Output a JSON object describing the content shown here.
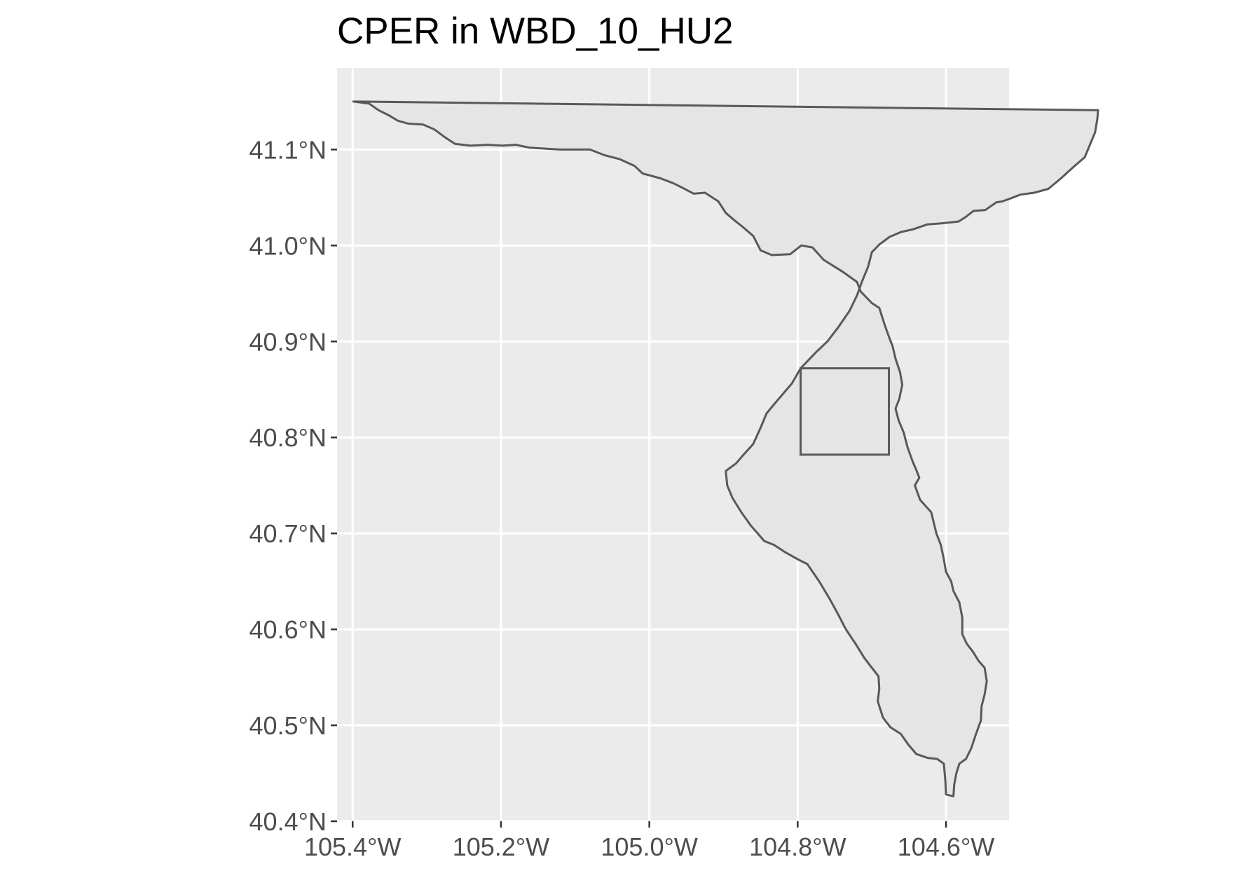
{
  "title": "CPER in WBD_10_HU2",
  "colors": {
    "panel_background": "#ebebeb",
    "grid": "#ffffff",
    "watershed_fill": "#e5e5e5",
    "outline": "#595959",
    "axis_text": "#4d4d4d",
    "tick": "#333333"
  },
  "chart_data": {
    "type": "map",
    "title": "CPER in WBD_10_HU2",
    "xlabel": "",
    "ylabel": "",
    "xlim": [
      -105.421,
      -104.515
    ],
    "ylim": [
      40.4,
      41.185
    ],
    "grid": true,
    "x_ticks": [
      {
        "value": -105.4,
        "label": "105.4°W"
      },
      {
        "value": -105.2,
        "label": "105.2°W"
      },
      {
        "value": -105.0,
        "label": "105.0°W"
      },
      {
        "value": -104.8,
        "label": "104.8°W"
      },
      {
        "value": -104.6,
        "label": "104.6°W"
      }
    ],
    "y_ticks": [
      {
        "value": 41.1,
        "label": "41.1°N"
      },
      {
        "value": 41.0,
        "label": "41.0°N"
      },
      {
        "value": 40.9,
        "label": "40.9°N"
      },
      {
        "value": 40.8,
        "label": "40.8°N"
      },
      {
        "value": 40.7,
        "label": "40.7°N"
      },
      {
        "value": 40.6,
        "label": "40.6°N"
      },
      {
        "value": 40.5,
        "label": "40.5°N"
      },
      {
        "value": 40.4,
        "label": "40.4°N"
      }
    ],
    "watershed_polygon": [
      [
        -105.399,
        41.15
      ],
      [
        -105.378,
        41.148
      ],
      [
        -105.365,
        41.141
      ],
      [
        -105.352,
        41.136
      ],
      [
        -105.339,
        41.13
      ],
      [
        -105.325,
        41.127
      ],
      [
        -105.305,
        41.126
      ],
      [
        -105.29,
        41.121
      ],
      [
        -105.276,
        41.113
      ],
      [
        -105.262,
        41.106
      ],
      [
        -105.241,
        41.104
      ],
      [
        -105.218,
        41.105
      ],
      [
        -105.198,
        41.104
      ],
      [
        -105.18,
        41.105
      ],
      [
        -105.162,
        41.102
      ],
      [
        -105.142,
        41.101
      ],
      [
        -105.121,
        41.1
      ],
      [
        -105.1,
        41.1
      ],
      [
        -105.08,
        41.1
      ],
      [
        -105.06,
        41.094
      ],
      [
        -105.04,
        41.09
      ],
      [
        -105.02,
        41.083
      ],
      [
        -105.009,
        41.075
      ],
      [
        -104.985,
        41.07
      ],
      [
        -104.968,
        41.065
      ],
      [
        -104.955,
        41.06
      ],
      [
        -104.94,
        41.054
      ],
      [
        -104.925,
        41.055
      ],
      [
        -104.907,
        41.046
      ],
      [
        -104.897,
        41.034
      ],
      [
        -104.885,
        41.026
      ],
      [
        -104.875,
        41.02
      ],
      [
        -104.86,
        41.01
      ],
      [
        -104.85,
        40.995
      ],
      [
        -104.835,
        40.99
      ],
      [
        -104.81,
        40.991
      ],
      [
        -104.795,
        41.0
      ],
      [
        -104.78,
        40.998
      ],
      [
        -104.765,
        40.985
      ],
      [
        -104.74,
        40.973
      ],
      [
        -104.72,
        40.962
      ],
      [
        -104.715,
        40.952
      ],
      [
        -104.7,
        40.94
      ],
      [
        -104.69,
        40.935
      ],
      [
        -104.683,
        40.918
      ],
      [
        -104.677,
        40.905
      ],
      [
        -104.672,
        40.895
      ],
      [
        -104.668,
        40.882
      ],
      [
        -104.662,
        40.868
      ],
      [
        -104.659,
        40.855
      ],
      [
        -104.663,
        40.84
      ],
      [
        -104.668,
        40.83
      ],
      [
        -104.664,
        40.818
      ],
      [
        -104.657,
        40.805
      ],
      [
        -104.652,
        40.79
      ],
      [
        -104.645,
        40.775
      ],
      [
        -104.64,
        40.766
      ],
      [
        -104.636,
        40.758
      ],
      [
        -104.642,
        40.75
      ],
      [
        -104.635,
        40.735
      ],
      [
        -104.62,
        40.722
      ],
      [
        -104.613,
        40.7
      ],
      [
        -104.607,
        40.688
      ],
      [
        -104.603,
        40.673
      ],
      [
        -104.6,
        40.66
      ],
      [
        -104.593,
        40.65
      ],
      [
        -104.59,
        40.64
      ],
      [
        -104.582,
        40.628
      ],
      [
        -104.578,
        40.612
      ],
      [
        -104.578,
        40.595
      ],
      [
        -104.572,
        40.585
      ],
      [
        -104.564,
        40.577
      ],
      [
        -104.556,
        40.567
      ],
      [
        -104.548,
        40.56
      ],
      [
        -104.545,
        40.546
      ],
      [
        -104.548,
        40.532
      ],
      [
        -104.552,
        40.52
      ],
      [
        -104.553,
        40.505
      ],
      [
        -104.56,
        40.49
      ],
      [
        -104.566,
        40.476
      ],
      [
        -104.573,
        40.465
      ],
      [
        -104.582,
        40.46
      ],
      [
        -104.586,
        40.45
      ],
      [
        -104.589,
        40.438
      ],
      [
        -104.59,
        40.426
      ],
      [
        -104.6,
        40.428
      ],
      [
        -104.601,
        40.443
      ],
      [
        -104.603,
        40.46
      ],
      [
        -104.612,
        40.465
      ],
      [
        -104.625,
        40.466
      ],
      [
        -104.64,
        40.47
      ],
      [
        -104.651,
        40.48
      ],
      [
        -104.661,
        40.491
      ],
      [
        -104.675,
        40.498
      ],
      [
        -104.685,
        40.508
      ],
      [
        -104.692,
        40.525
      ],
      [
        -104.69,
        40.538
      ],
      [
        -104.691,
        40.551
      ],
      [
        -104.7,
        40.56
      ],
      [
        -104.71,
        40.57
      ],
      [
        -104.722,
        40.585
      ],
      [
        -104.735,
        40.6
      ],
      [
        -104.745,
        40.615
      ],
      [
        -104.757,
        40.632
      ],
      [
        -104.771,
        40.65
      ],
      [
        -104.787,
        40.668
      ],
      [
        -104.8,
        40.673
      ],
      [
        -104.816,
        40.68
      ],
      [
        -104.832,
        40.688
      ],
      [
        -104.845,
        40.692
      ],
      [
        -104.863,
        40.708
      ],
      [
        -104.876,
        40.722
      ],
      [
        -104.888,
        40.737
      ],
      [
        -104.895,
        40.75
      ],
      [
        -104.897,
        40.765
      ],
      [
        -104.883,
        40.773
      ],
      [
        -104.873,
        40.782
      ],
      [
        -104.86,
        40.793
      ],
      [
        -104.85,
        40.81
      ],
      [
        -104.842,
        40.825
      ],
      [
        -104.828,
        40.838
      ],
      [
        -104.808,
        40.856
      ],
      [
        -104.796,
        40.872
      ],
      [
        -104.775,
        40.889
      ],
      [
        -104.76,
        40.9
      ],
      [
        -104.746,
        40.914
      ],
      [
        -104.73,
        40.932
      ],
      [
        -104.72,
        40.948
      ],
      [
        -104.713,
        40.963
      ],
      [
        -104.705,
        40.978
      ],
      [
        -104.7,
        40.993
      ],
      [
        -104.69,
        41.001
      ],
      [
        -104.676,
        41.009
      ],
      [
        -104.661,
        41.014
      ],
      [
        -104.644,
        41.017
      ],
      [
        -104.625,
        41.022
      ],
      [
        -104.606,
        41.023
      ],
      [
        -104.583,
        41.025
      ],
      [
        -104.573,
        41.03
      ],
      [
        -104.563,
        41.036
      ],
      [
        -104.547,
        41.037
      ],
      [
        -104.532,
        41.045
      ],
      [
        -104.524,
        41.046
      ],
      [
        -104.513,
        41.049
      ],
      [
        -104.5,
        41.053
      ],
      [
        -104.481,
        41.055
      ],
      [
        -104.462,
        41.059
      ],
      [
        -104.445,
        41.07
      ],
      [
        -104.428,
        41.082
      ],
      [
        -104.413,
        41.092
      ],
      [
        -104.406,
        41.105
      ],
      [
        -104.399,
        41.118
      ],
      [
        -104.396,
        41.132
      ],
      [
        -104.395,
        41.141
      ],
      [
        -105.398,
        41.15
      ]
    ],
    "cper_box": {
      "lon": [
        -104.796,
        -104.677
      ],
      "lat": [
        40.782,
        40.872
      ]
    }
  }
}
